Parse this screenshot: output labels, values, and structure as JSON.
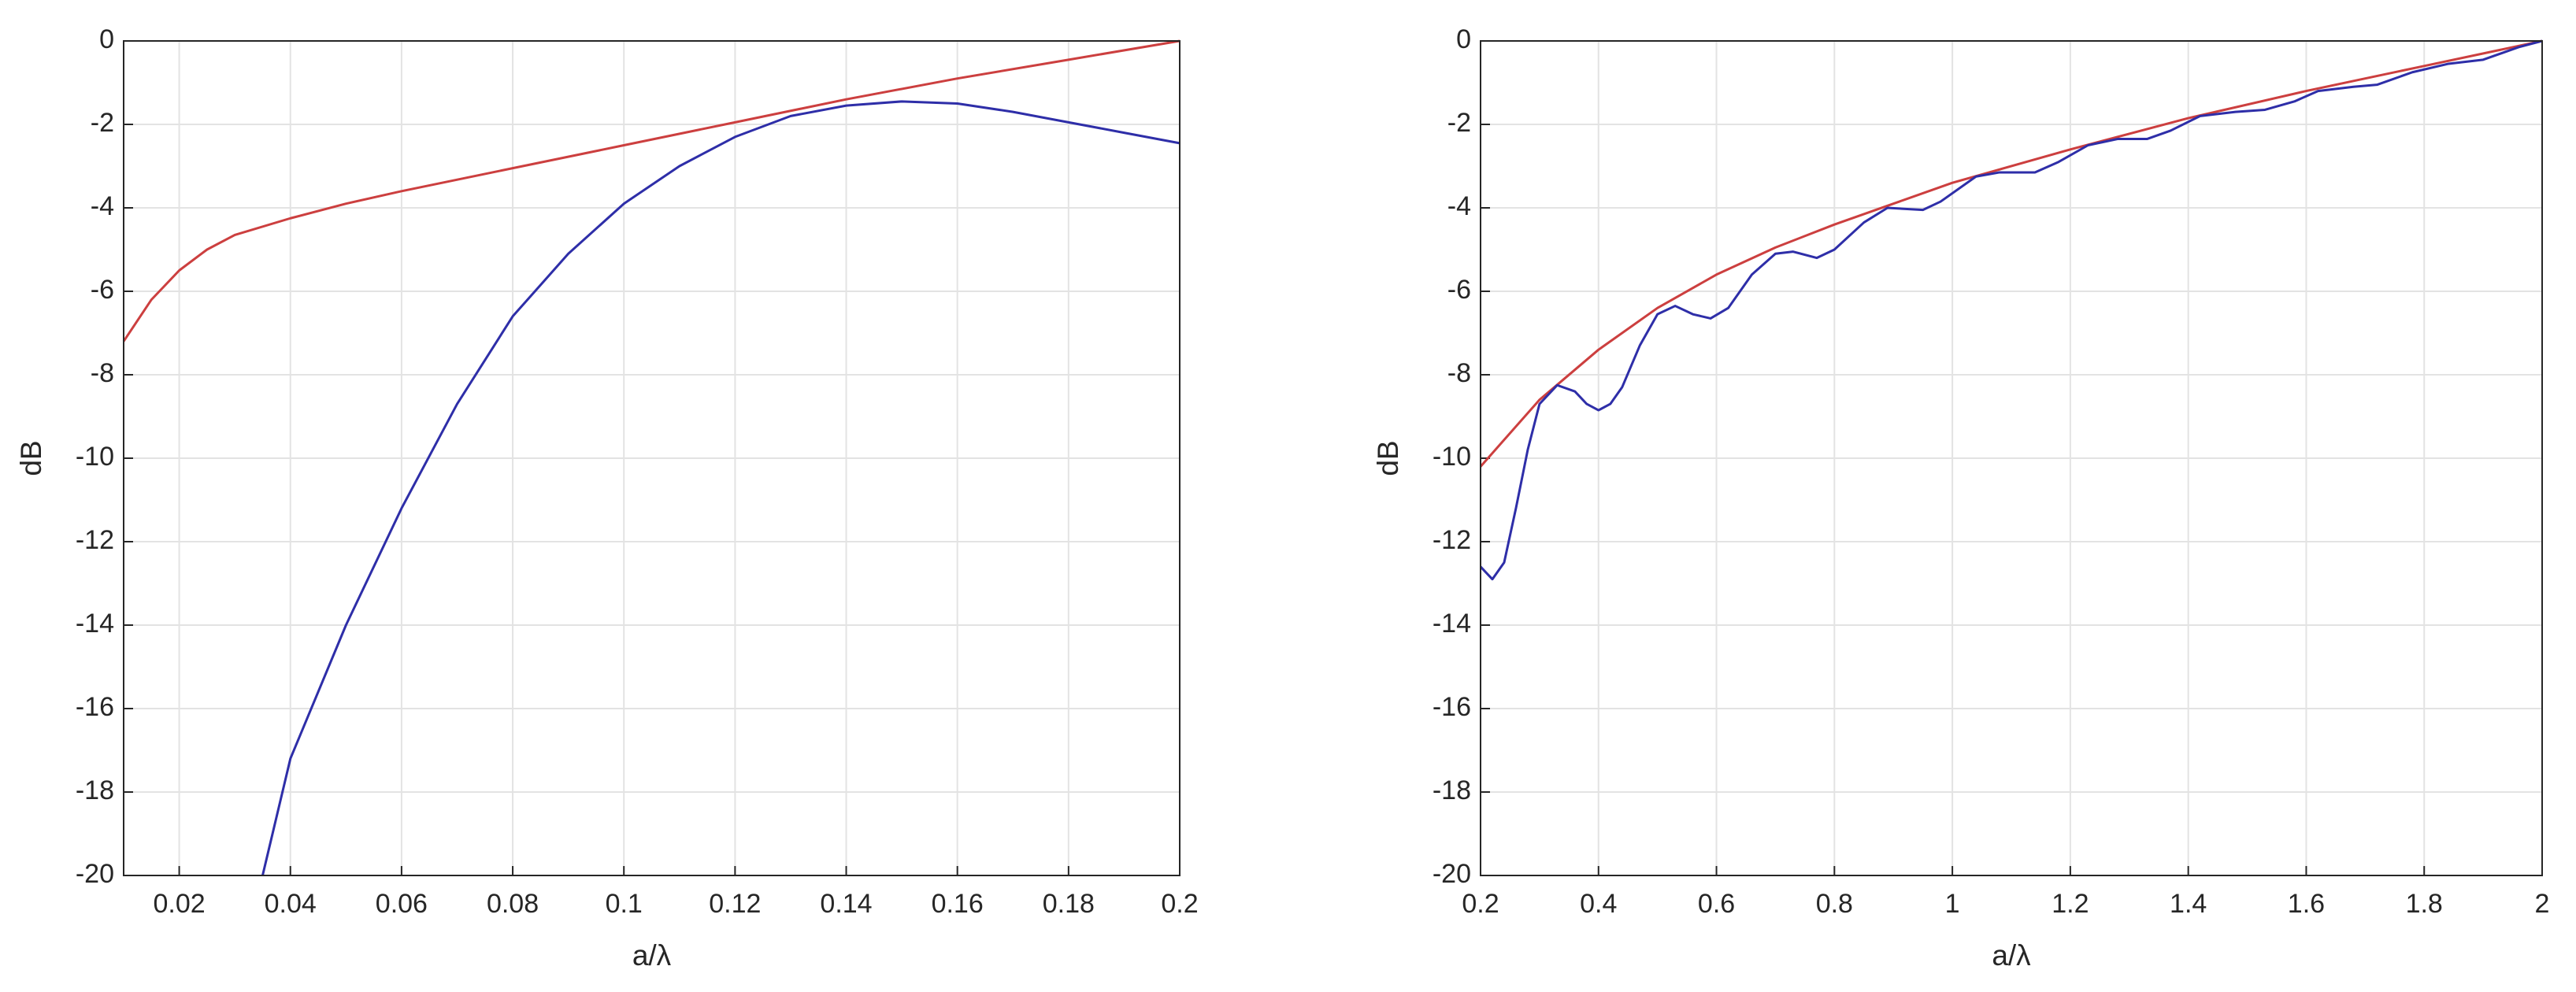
{
  "chart_data": [
    {
      "type": "line",
      "xlabel": "a/λ",
      "ylabel": "dB",
      "xlim": [
        0.01,
        0.2
      ],
      "ylim": [
        -20,
        0
      ],
      "xticks": [
        0.02,
        0.04,
        0.06,
        0.08,
        0.1,
        0.12,
        0.14,
        0.16,
        0.18,
        0.2
      ],
      "yticks": [
        -20,
        -18,
        -16,
        -14,
        -12,
        -10,
        -8,
        -6,
        -4,
        -2,
        0
      ],
      "grid": true,
      "series": [
        {
          "color": "#cc3f3f",
          "x": [
            0.01,
            0.015,
            0.02,
            0.025,
            0.03,
            0.04,
            0.05,
            0.06,
            0.08,
            0.1,
            0.12,
            0.14,
            0.16,
            0.18,
            0.2
          ],
          "values": [
            -7.2,
            -6.2,
            -5.5,
            -5.0,
            -4.65,
            -4.25,
            -3.9,
            -3.6,
            -3.05,
            -2.5,
            -1.95,
            -1.4,
            -0.9,
            -0.45,
            0
          ]
        },
        {
          "color": "#2e2ea8",
          "x": [
            0.035,
            0.04,
            0.05,
            0.06,
            0.07,
            0.08,
            0.09,
            0.1,
            0.11,
            0.12,
            0.13,
            0.14,
            0.15,
            0.16,
            0.17,
            0.18,
            0.19,
            0.2
          ],
          "values": [
            -20,
            -17.2,
            -14,
            -11.2,
            -8.7,
            -6.6,
            -5.1,
            -3.9,
            -3.0,
            -2.3,
            -1.8,
            -1.55,
            -1.45,
            -1.5,
            -1.7,
            -1.95,
            -2.2,
            -2.45
          ]
        }
      ]
    },
    {
      "type": "line",
      "xlabel": "a/λ",
      "ylabel": "dB",
      "xlim": [
        0.2,
        2
      ],
      "ylim": [
        -20,
        0
      ],
      "xticks": [
        0.2,
        0.4,
        0.6,
        0.8,
        1,
        1.2,
        1.4,
        1.6,
        1.8,
        2
      ],
      "yticks": [
        -20,
        -18,
        -16,
        -14,
        -12,
        -10,
        -8,
        -6,
        -4,
        -2,
        0
      ],
      "grid": true,
      "series": [
        {
          "color": "#cc3f3f",
          "x": [
            0.2,
            0.3,
            0.4,
            0.5,
            0.6,
            0.7,
            0.8,
            0.9,
            1.0,
            1.2,
            1.4,
            1.6,
            1.8,
            2.0
          ],
          "values": [
            -10.2,
            -8.6,
            -7.4,
            -6.4,
            -5.6,
            -4.95,
            -4.4,
            -3.9,
            -3.4,
            -2.6,
            -1.85,
            -1.2,
            -0.6,
            0
          ]
        },
        {
          "color": "#2e2ea8",
          "x": [
            0.2,
            0.22,
            0.24,
            0.26,
            0.28,
            0.3,
            0.33,
            0.36,
            0.38,
            0.4,
            0.42,
            0.44,
            0.47,
            0.5,
            0.53,
            0.56,
            0.59,
            0.62,
            0.66,
            0.7,
            0.73,
            0.77,
            0.8,
            0.85,
            0.89,
            0.95,
            0.98,
            1.04,
            1.08,
            1.14,
            1.18,
            1.23,
            1.28,
            1.33,
            1.37,
            1.42,
            1.48,
            1.53,
            1.58,
            1.62,
            1.68,
            1.72,
            1.78,
            1.84,
            1.9,
            1.96,
            2.0
          ],
          "values": [
            -12.6,
            -12.9,
            -12.5,
            -11.2,
            -9.8,
            -8.7,
            -8.25,
            -8.4,
            -8.7,
            -8.85,
            -8.7,
            -8.3,
            -7.3,
            -6.55,
            -6.35,
            -6.55,
            -6.65,
            -6.4,
            -5.6,
            -5.1,
            -5.05,
            -5.2,
            -5.0,
            -4.35,
            -4.0,
            -4.05,
            -3.85,
            -3.25,
            -3.15,
            -3.15,
            -2.9,
            -2.5,
            -2.35,
            -2.35,
            -2.15,
            -1.8,
            -1.7,
            -1.65,
            -1.45,
            -1.2,
            -1.1,
            -1.05,
            -0.75,
            -0.55,
            -0.45,
            -0.15,
            0
          ]
        }
      ]
    }
  ]
}
